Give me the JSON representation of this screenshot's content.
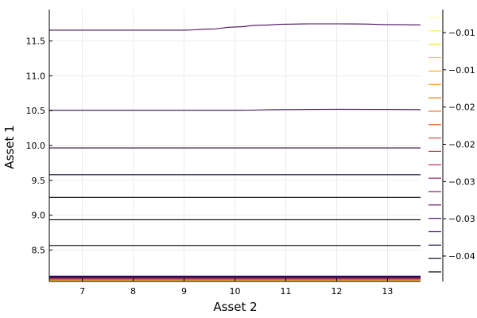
{
  "chart_data": {
    "type": "contour",
    "title": "",
    "xlabel": "Asset 2",
    "ylabel": "Asset 1",
    "xlim": [
      6.35,
      13.65
    ],
    "ylim": [
      8.05,
      11.95
    ],
    "xticks": [
      7,
      8,
      9,
      10,
      11,
      12,
      13
    ],
    "xtick_labels": [
      "7",
      "8",
      "9",
      "10",
      "11",
      "12",
      "13"
    ],
    "yticks": [
      8.5,
      9.0,
      9.5,
      10.0,
      10.5,
      11.0,
      11.5
    ],
    "ytick_labels": [
      "8.5",
      "9.0",
      "9.5",
      "10.0",
      "10.5",
      "11.0",
      "11.5"
    ],
    "grid": true,
    "colormap": "inferno",
    "contour_lines": [
      {
        "x": [
          6.35,
          13.65
        ],
        "y": [
          8.565,
          8.565
        ],
        "color": "#000000"
      },
      {
        "x": [
          6.35,
          13.65
        ],
        "y": [
          8.935,
          8.935
        ],
        "color": "#000000"
      },
      {
        "x": [
          6.35,
          13.65
        ],
        "y": [
          9.255,
          9.255
        ],
        "color": "#000000"
      },
      {
        "x": [
          6.35,
          13.65
        ],
        "y": [
          9.58,
          9.58
        ],
        "color": "#1a0b2e"
      },
      {
        "x": [
          6.35,
          13.65
        ],
        "y": [
          9.965,
          9.965
        ],
        "color": "#2d0a3a"
      },
      {
        "x": [
          6.35,
          10,
          11,
          12,
          13.65
        ],
        "y": [
          10.505,
          10.505,
          10.515,
          10.52,
          10.515
        ],
        "color": "#3b0f50"
      },
      {
        "x": [
          6.35,
          9.0,
          9.5,
          10.0,
          10.5,
          11.0,
          11.5,
          12.0,
          12.5,
          13.0,
          13.65
        ],
        "y": [
          11.655,
          11.655,
          11.67,
          11.7,
          11.725,
          11.74,
          11.745,
          11.745,
          11.742,
          11.735,
          11.73
        ],
        "color": "#4a0c5a"
      }
    ],
    "bottom_band": {
      "y_levels": [
        8.06,
        8.07,
        8.08,
        8.09,
        8.1,
        8.11,
        8.12
      ],
      "colors": [
        "#fcffa4",
        "#fac228",
        "#f57d15",
        "#d44842",
        "#9f2a63",
        "#65156e",
        "#280b53"
      ]
    },
    "colorbar": {
      "tick_labels": [
        "−0.04",
        "−0.03",
        "−0.03",
        "−0.02",
        "−0.02",
        "−0.01",
        "−0.01"
      ],
      "levels": [
        "#000004",
        "#0a0722",
        "#1e0c45",
        "#38096e",
        "#550f6d",
        "#6a176e",
        "#81206c",
        "#982766",
        "#ae305c",
        "#c33b4f",
        "#d44842",
        "#e35933",
        "#ed6925",
        "#f57d15",
        "#fa9407",
        "#fcab10",
        "#fbc229",
        "#f6d746",
        "#f2ea69",
        "#fcffa4"
      ]
    }
  }
}
